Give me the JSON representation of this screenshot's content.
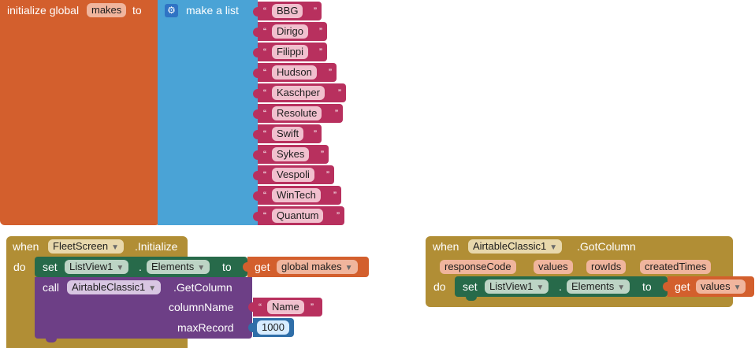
{
  "global_block": {
    "initialize_label": "initialize global",
    "variable_name": "makes",
    "to_label": "to",
    "list_label": "make a list",
    "items": [
      "BBG",
      "Dirigo",
      "Filippi",
      "Hudson",
      "Kaschper",
      "Resolute",
      "Swift",
      "Sykes",
      "Vespoli",
      "WinTech",
      "Quantum"
    ]
  },
  "fleet_event": {
    "when_label": "when",
    "component": "FleetScreen",
    "event": ".Initialize",
    "do_label": "do",
    "set_label": "set",
    "set_component": "ListView1",
    "dot": ".",
    "property": "Elements",
    "to_label": "to",
    "get_label": "get",
    "get_var": "global makes",
    "call_label": "call",
    "call_component": "AirtableClassic1",
    "method": ".GetColumn",
    "param1_label": "columnName",
    "param1_value": "Name",
    "param2_label": "maxRecord",
    "param2_value": "1000"
  },
  "airtable_event": {
    "when_label": "when",
    "component": "AirtableClassic1",
    "event": ".GotColumn",
    "params": [
      "responseCode",
      "values",
      "rowIds",
      "createdTimes"
    ],
    "do_label": "do",
    "set_label": "set",
    "set_component": "ListView1",
    "dot": ".",
    "property": "Elements",
    "to_label": "to",
    "get_label": "get",
    "get_var": "values"
  },
  "colors": {
    "variables": "#d35f2d",
    "lists": "#4aa3d6",
    "text": "#b8305e",
    "events": "#b18e35",
    "setters": "#276a4a",
    "methods": "#6d3f86",
    "math": "#2f6ea8"
  }
}
